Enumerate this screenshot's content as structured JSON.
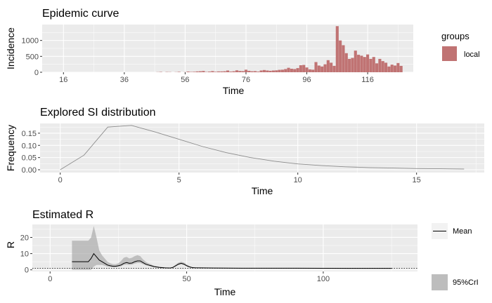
{
  "chart_data": [
    {
      "type": "bar",
      "title": "Epidemic curve",
      "xlabel": "Time",
      "ylabel": "Incidence",
      "xlim": [
        9,
        131
      ],
      "ylim": [
        0,
        1500
      ],
      "xticks": [
        16,
        36,
        56,
        76,
        96,
        116
      ],
      "yticks": [
        0,
        500,
        1000
      ],
      "legend": {
        "title": "groups",
        "entries": [
          "local"
        ],
        "position": "right"
      },
      "color": "#c07373",
      "x": [
        47,
        48,
        49,
        50,
        51,
        52,
        53,
        54,
        55,
        56,
        57,
        58,
        59,
        60,
        61,
        62,
        63,
        64,
        65,
        66,
        67,
        68,
        69,
        70,
        71,
        72,
        73,
        74,
        75,
        76,
        77,
        78,
        79,
        80,
        81,
        82,
        83,
        84,
        85,
        86,
        87,
        88,
        89,
        90,
        91,
        92,
        93,
        94,
        95,
        96,
        97,
        98,
        99,
        100,
        101,
        102,
        103,
        104,
        105,
        106,
        107,
        108,
        109,
        110,
        111,
        112,
        113,
        114,
        115,
        116,
        117,
        118,
        119,
        120,
        121,
        122,
        123,
        124,
        125,
        126,
        127
      ],
      "values": [
        5,
        10,
        0,
        8,
        6,
        0,
        5,
        12,
        0,
        5,
        20,
        10,
        15,
        25,
        30,
        40,
        10,
        20,
        35,
        15,
        25,
        25,
        30,
        55,
        20,
        30,
        60,
        40,
        35,
        80,
        45,
        30,
        35,
        20,
        55,
        70,
        55,
        45,
        55,
        60,
        75,
        80,
        100,
        140,
        110,
        100,
        130,
        220,
        230,
        150,
        90,
        80,
        320,
        210,
        180,
        250,
        380,
        300,
        200,
        1450,
        1000,
        850,
        600,
        420,
        450,
        680,
        550,
        520,
        480,
        560,
        420,
        480,
        280,
        420,
        350,
        300,
        180,
        240,
        210,
        290,
        200
      ]
    },
    {
      "type": "line",
      "title": "Explored SI distribution",
      "xlabel": "Time",
      "ylabel": "Frequency",
      "xlim": [
        -0.85,
        17.85
      ],
      "ylim": [
        0,
        0.19
      ],
      "xticks": [
        0,
        5,
        10,
        15
      ],
      "yticks": [
        0.0,
        0.05,
        0.1,
        0.15
      ],
      "ytick_labels": [
        "0.00",
        "0.05",
        "0.10",
        "0.15"
      ],
      "x": [
        0,
        1,
        2,
        3,
        4,
        5,
        6,
        7,
        8,
        9,
        10,
        11,
        12,
        13,
        14,
        15,
        16,
        17
      ],
      "values": [
        0.0,
        0.06,
        0.175,
        0.182,
        0.155,
        0.125,
        0.095,
        0.07,
        0.05,
        0.035,
        0.024,
        0.017,
        0.012,
        0.009,
        0.007,
        0.005,
        0.004,
        0.003
      ]
    },
    {
      "type": "area",
      "title": "Estimated R",
      "xlabel": "Time",
      "ylabel": "R",
      "xlim": [
        -6.5,
        134.5
      ],
      "ylim": [
        -1,
        28
      ],
      "xticks": [
        0,
        50,
        100
      ],
      "yticks": [
        0,
        10,
        20
      ],
      "legend": {
        "entries": [
          "Mean",
          "95%CrI"
        ],
        "position": "right"
      },
      "reference_line": 1,
      "series": [
        {
          "name": "Mean",
          "x": [
            8,
            14,
            15,
            16,
            17,
            18,
            19,
            20,
            21,
            22,
            23,
            24,
            25,
            26,
            27,
            28,
            29,
            30,
            31,
            32,
            33,
            34,
            35,
            36,
            37,
            38,
            40,
            42,
            44,
            45,
            46,
            47,
            48,
            49,
            50,
            51,
            52,
            53,
            55,
            60,
            70,
            80,
            90,
            100,
            110,
            120,
            125
          ],
          "values": [
            5,
            5,
            7,
            10,
            8,
            6,
            5,
            4,
            3,
            2.5,
            2.2,
            2.2,
            2.5,
            3,
            4,
            4.5,
            4,
            4.2,
            5,
            5.5,
            5.5,
            4.5,
            3.5,
            3,
            2.5,
            2,
            1.5,
            1.2,
            1.1,
            1.5,
            2.5,
            3.5,
            4,
            3.5,
            2.5,
            1.8,
            1.4,
            1.3,
            1.2,
            1.1,
            1.0,
            1.0,
            1.0,
            0.95,
            0.9,
            0.9,
            0.9
          ]
        },
        {
          "name": "95%CrI",
          "x": [
            8,
            14,
            15,
            16,
            17,
            18,
            19,
            20,
            21,
            22,
            23,
            24,
            25,
            26,
            27,
            28,
            29,
            30,
            31,
            32,
            33,
            34,
            35,
            36,
            37,
            38,
            40,
            42,
            44,
            45,
            46,
            47,
            48,
            49,
            50,
            51,
            52,
            53,
            55,
            60,
            70,
            80,
            90,
            100,
            110,
            120,
            125
          ],
          "lower": [
            0,
            0,
            0,
            2,
            3,
            3,
            3,
            2.5,
            2,
            1.8,
            1.6,
            1.6,
            1.8,
            2.2,
            3,
            3.3,
            3,
            3.2,
            3.8,
            4.2,
            4.2,
            3.5,
            2.8,
            2.4,
            2,
            1.7,
            1.3,
            1.1,
            1,
            1.3,
            2.1,
            3,
            3.4,
            3,
            2.2,
            1.6,
            1.3,
            1.2,
            1.1,
            1.0,
            0.9,
            0.9,
            0.9,
            0.85,
            0.85,
            0.85,
            0.85
          ],
          "upper": [
            18,
            18,
            20,
            27,
            20,
            12,
            9,
            7,
            5,
            4,
            3.5,
            3.4,
            4,
            5.5,
            7.5,
            8,
            7,
            7.5,
            8.5,
            9,
            8.5,
            6.5,
            5,
            4,
            3.3,
            2.6,
            1.9,
            1.5,
            1.3,
            2,
            3.2,
            4.5,
            5,
            4.5,
            3.3,
            2.3,
            1.7,
            1.5,
            1.4,
            1.25,
            1.1,
            1.1,
            1.1,
            1.05,
            1.0,
            1.0,
            1.0
          ]
        }
      ]
    }
  ]
}
